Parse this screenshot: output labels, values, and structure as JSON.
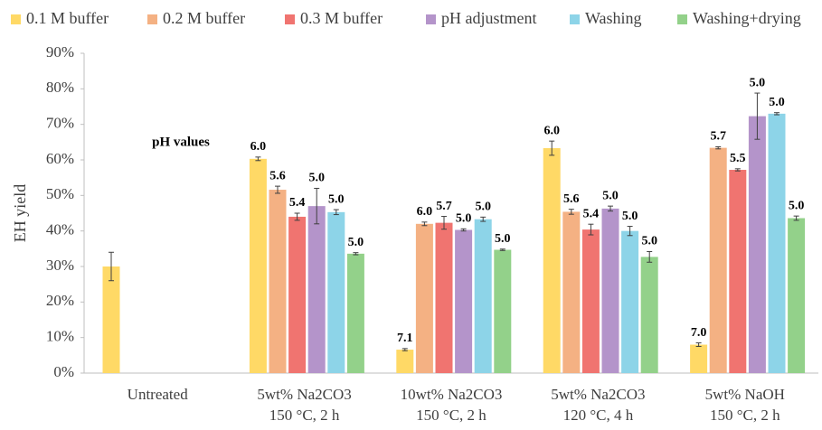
{
  "chart_data": {
    "type": "bar",
    "y_label": "EH yield",
    "annotation": "pH values",
    "categories": [
      "Untreated",
      "5wt% Na2CO3\n150 °C, 2 h",
      "10wt% Na2CO3\n150 °C, 2 h",
      "5wt% Na2CO3\n120 °C, 4 h",
      "5wt% NaOH\n150 °C, 2 h"
    ],
    "series": [
      {
        "name": "0.1 M buffer",
        "color": "#FFD966",
        "values": [
          30,
          60.3,
          6.6,
          63.3,
          8
        ],
        "errors": [
          4,
          0.5,
          0.3,
          2,
          0.5
        ],
        "ph_labels": [
          null,
          "6.0",
          "7.1",
          "6.0",
          "7.0"
        ]
      },
      {
        "name": "0.2 M buffer",
        "color": "#F4B183",
        "values": [
          null,
          51.6,
          42,
          45.4,
          63.4
        ],
        "errors": [
          null,
          1,
          0.5,
          0.7,
          0.3
        ],
        "ph_labels": [
          null,
          "5.6",
          "6.0",
          "5.6",
          "5.7"
        ]
      },
      {
        "name": "0.3 M buffer",
        "color": "#F07470",
        "values": [
          null,
          44,
          42.3,
          40.4,
          57.2
        ],
        "errors": [
          null,
          1,
          1.8,
          1.5,
          0.3
        ],
        "ph_labels": [
          null,
          "5.4",
          "5.7",
          "5.4",
          "5.5"
        ]
      },
      {
        "name": "pH adjustment",
        "color": "#B494CA",
        "values": [
          null,
          47,
          40.3,
          46.3,
          72.3
        ],
        "errors": [
          null,
          5,
          0.3,
          0.7,
          6.5
        ],
        "ph_labels": [
          null,
          "5.0",
          "5.0",
          "5.0",
          "5.0"
        ]
      },
      {
        "name": "Washing",
        "color": "#8DD4E8",
        "values": [
          null,
          45.3,
          43.3,
          40,
          73
        ],
        "errors": [
          null,
          0.7,
          0.6,
          1.3,
          0.3
        ],
        "ph_labels": [
          null,
          "5.0",
          "5.0",
          "5.0",
          "5.0"
        ]
      },
      {
        "name": "Washing+drying",
        "color": "#93D18A",
        "values": [
          null,
          33.6,
          34.7,
          32.7,
          43.6
        ],
        "errors": [
          null,
          0.3,
          0.2,
          1.5,
          0.6
        ],
        "ph_labels": [
          null,
          "5.0",
          "5.0",
          "5.0",
          "5.0"
        ]
      }
    ],
    "ylim": [
      0,
      90
    ],
    "yticks": [
      {
        "value": 0,
        "label": "0%"
      },
      {
        "value": 10,
        "label": "10%"
      },
      {
        "value": 20,
        "label": "20%"
      },
      {
        "value": 30,
        "label": "30%"
      },
      {
        "value": 40,
        "label": "40%"
      },
      {
        "value": 50,
        "label": "50%"
      },
      {
        "value": 60,
        "label": "60%"
      },
      {
        "value": 70,
        "label": "70%"
      },
      {
        "value": 80,
        "label": "80%"
      },
      {
        "value": 90,
        "label": "90%"
      }
    ],
    "grid": false,
    "legend": "top"
  }
}
